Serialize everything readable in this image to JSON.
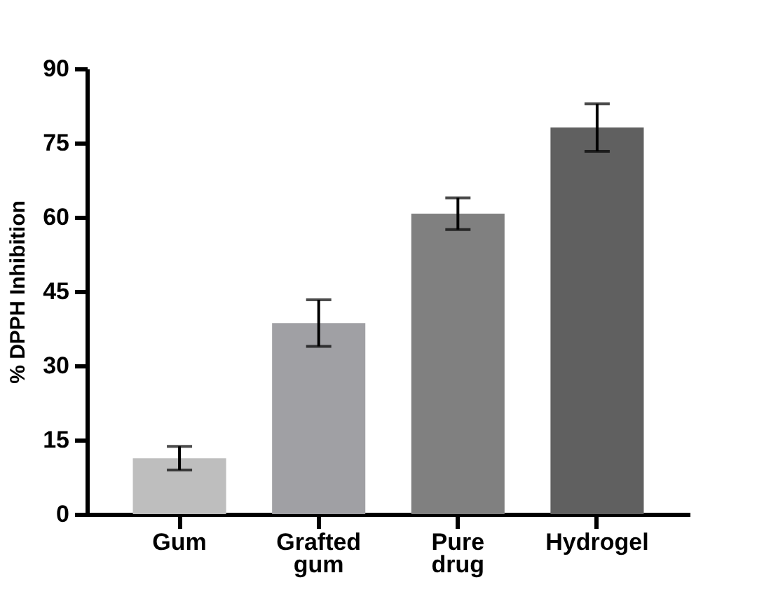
{
  "chart_data": {
    "type": "bar",
    "ylabel": "% DPPH Inhibition",
    "categories": [
      "Gum",
      "Grafted gum",
      "Pure drug",
      "Hydrogel"
    ],
    "values": [
      11.3,
      38.6,
      60.7,
      78.1
    ],
    "errors": [
      2.4,
      4.7,
      3.2,
      4.8
    ],
    "colors": [
      "#bebebe",
      "#a0a0a4",
      "#808080",
      "#606060"
    ],
    "ylim": [
      0,
      90
    ],
    "yticks": [
      0,
      15,
      30,
      45,
      60,
      75,
      90
    ],
    "grid": false,
    "legend": false
  }
}
